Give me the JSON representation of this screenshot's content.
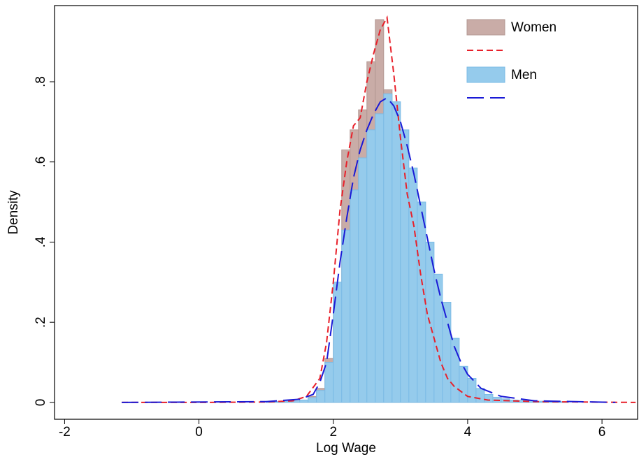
{
  "chart_data": {
    "type": "histogram",
    "x_label": "Log Wage",
    "y_label": "Density",
    "xlim": [
      -2.15,
      6.53
    ],
    "ylim": [
      -0.042,
      0.99
    ],
    "xticks": [
      -2,
      0,
      2,
      4,
      6
    ],
    "yticks": [
      0,
      {
        "value": 0.2,
        "label": ".2"
      },
      {
        "value": 0.4,
        "label": ".4"
      },
      {
        "value": 0.6,
        "label": ".6"
      },
      {
        "value": 0.8,
        "label": ".8"
      }
    ],
    "legend": "top-right",
    "bins": [
      1.0,
      1.125,
      1.25,
      1.375,
      1.5,
      1.625,
      1.75,
      1.875,
      2.0,
      2.125,
      2.25,
      2.375,
      2.5,
      2.625,
      2.75,
      2.875,
      3.0,
      3.125,
      3.25,
      3.375,
      3.5,
      3.625,
      3.75,
      3.875,
      4.0,
      4.125,
      4.25,
      4.375,
      4.5,
      4.625,
      4.75,
      4.875,
      5.0,
      5.125,
      5.25,
      5.375,
      5.5
    ],
    "series": [
      {
        "name": "Women",
        "color": "#c9aca7",
        "edge": "#b39893",
        "values": [
          0.002,
          0.002,
          0.003,
          0.004,
          0.006,
          0.015,
          0.035,
          0.11,
          0.28,
          0.63,
          0.68,
          0.73,
          0.85,
          0.955,
          0.78,
          0.6,
          0.52,
          0.42,
          0.31,
          0.21,
          0.13,
          0.08,
          0.05,
          0.03,
          0.02,
          0.012,
          0.008,
          0.006,
          0.004,
          0.003,
          0.002,
          0.002,
          0.001,
          0.001,
          0.001,
          0.001
        ]
      },
      {
        "name": "Men",
        "color": "#95cbec",
        "edge": "#7bbbe6",
        "values": [
          0.001,
          0.002,
          0.003,
          0.004,
          0.006,
          0.012,
          0.03,
          0.1,
          0.3,
          0.43,
          0.53,
          0.61,
          0.68,
          0.72,
          0.77,
          0.75,
          0.68,
          0.585,
          0.5,
          0.4,
          0.32,
          0.25,
          0.16,
          0.09,
          0.06,
          0.035,
          0.02,
          0.013,
          0.009,
          0.006,
          0.005,
          0.004,
          0.003,
          0.003,
          0.002,
          0.002
        ]
      }
    ],
    "lines": [
      {
        "color": "#e8202a",
        "dash": "short",
        "x": [
          -1.15,
          0,
          1,
          1.4,
          1.6,
          1.8,
          1.9,
          2.0,
          2.1,
          2.2,
          2.3,
          2.4,
          2.5,
          2.6,
          2.7,
          2.8,
          2.9,
          3.0,
          3.1,
          3.2,
          3.3,
          3.4,
          3.5,
          3.6,
          3.7,
          3.8,
          4.0,
          4.3,
          5,
          6.5
        ],
        "values": [
          0,
          0,
          0.001,
          0.004,
          0.015,
          0.06,
          0.15,
          0.3,
          0.48,
          0.6,
          0.69,
          0.71,
          0.8,
          0.87,
          0.93,
          0.96,
          0.82,
          0.66,
          0.52,
          0.44,
          0.32,
          0.22,
          0.16,
          0.1,
          0.06,
          0.04,
          0.015,
          0.006,
          0.002,
          0
        ]
      },
      {
        "color": "#1a1ad6",
        "dash": "long",
        "x": [
          -1.15,
          1,
          1.5,
          1.7,
          1.8,
          1.9,
          2.0,
          2.1,
          2.2,
          2.3,
          2.4,
          2.5,
          2.6,
          2.7,
          2.8,
          2.9,
          3.0,
          3.1,
          3.2,
          3.3,
          3.4,
          3.5,
          3.6,
          3.7,
          3.8,
          3.9,
          4.0,
          4.2,
          4.5,
          5,
          6.2
        ],
        "values": [
          0,
          0.002,
          0.008,
          0.02,
          0.05,
          0.1,
          0.22,
          0.35,
          0.46,
          0.56,
          0.63,
          0.68,
          0.72,
          0.75,
          0.76,
          0.74,
          0.7,
          0.64,
          0.57,
          0.49,
          0.41,
          0.33,
          0.26,
          0.2,
          0.14,
          0.1,
          0.07,
          0.035,
          0.015,
          0.004,
          0
        ]
      }
    ]
  }
}
